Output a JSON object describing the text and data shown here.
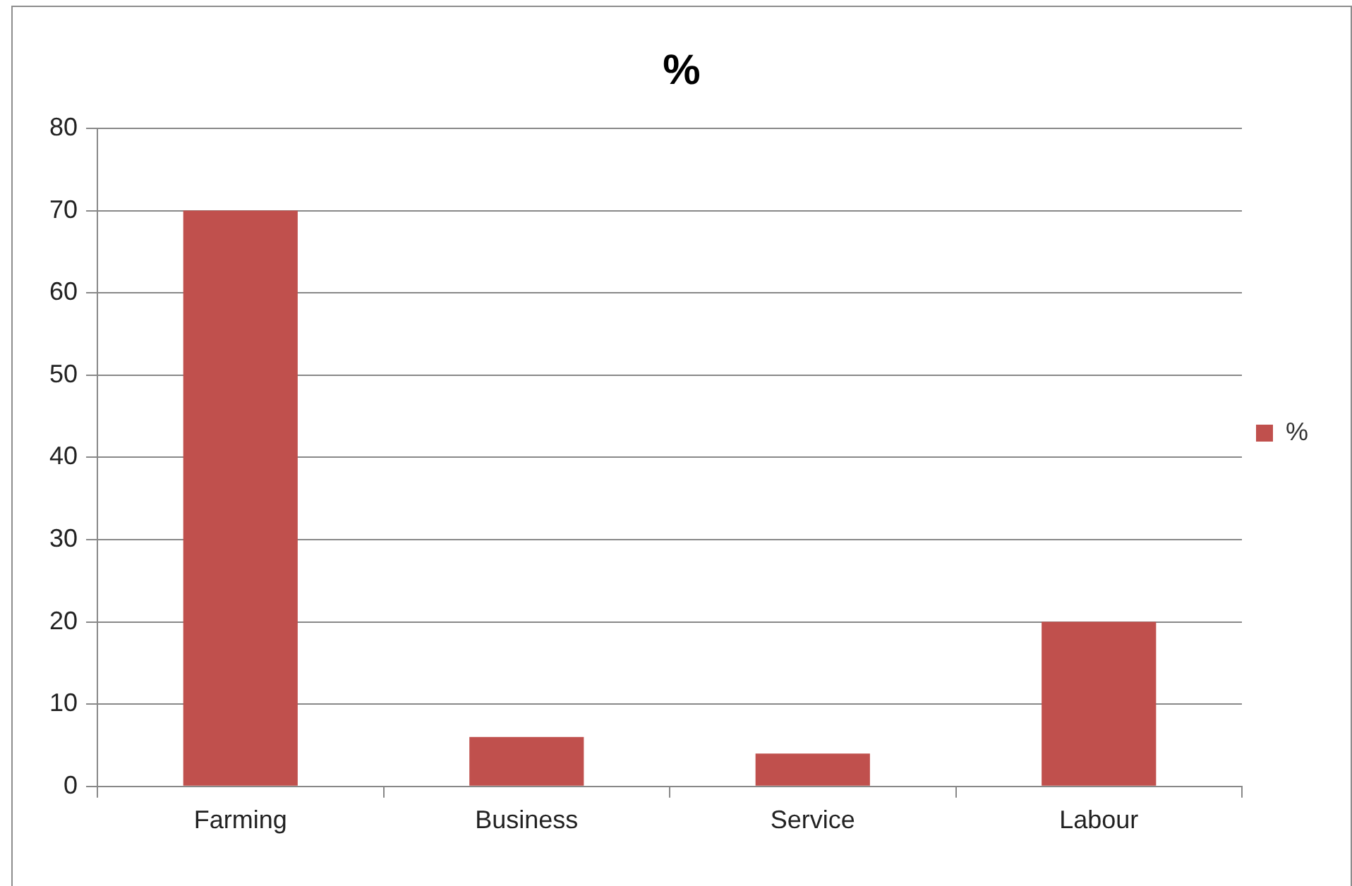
{
  "chart_data": {
    "type": "bar",
    "title": "%",
    "categories": [
      "Farming",
      "Business",
      "Service",
      "Labour"
    ],
    "series": [
      {
        "name": "%",
        "color": "#c0504d",
        "values": [
          70,
          6,
          4,
          20
        ]
      }
    ],
    "ylim": [
      0,
      80
    ],
    "yticks": [
      0,
      10,
      20,
      30,
      40,
      50,
      60,
      70,
      80
    ],
    "grid": "y",
    "legend": "right"
  }
}
